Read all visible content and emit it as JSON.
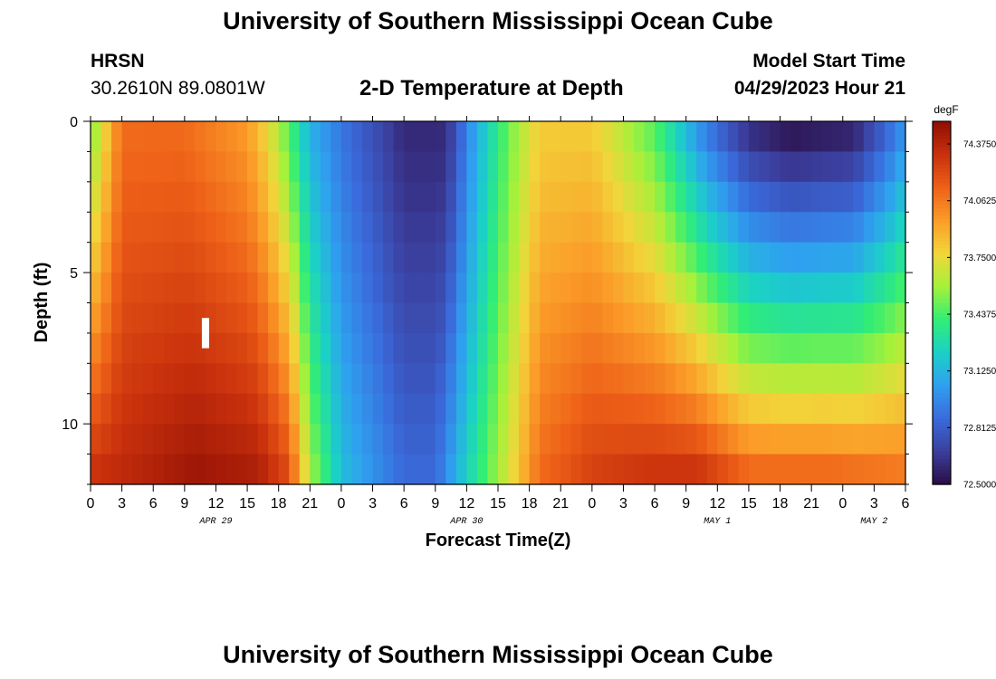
{
  "header": {
    "title": "University of Southern Mississippi Ocean Cube",
    "station": "HRSN",
    "coordinates": "30.2610N  89.0801W",
    "plot_title": "2-D Temperature at Depth",
    "run_label": "Model Start Time",
    "run_time": "04/29/2023 Hour 21"
  },
  "footer": {
    "title": "University of Southern Mississippi Ocean Cube"
  },
  "colors": {
    "palette": [
      "#2b0d45",
      "#3b3f9e",
      "#3a6bdc",
      "#2fa0f0",
      "#1bd1c6",
      "#32ee74",
      "#a6f13a",
      "#f2d53a",
      "#fb9c28",
      "#ee6018",
      "#c8300c",
      "#8e0e05"
    ]
  },
  "chart_data": {
    "type": "heatmap",
    "title": "2-D Temperature at Depth",
    "xlabel": "Forecast Time(Z)",
    "ylabel": "Depth (ft)",
    "x_tick_labels": [
      "0",
      "3",
      "6",
      "9",
      "12",
      "15",
      "18",
      "21",
      "0",
      "3",
      "6",
      "9",
      "12",
      "15",
      "18",
      "21",
      "0",
      "3",
      "6",
      "9",
      "12",
      "15",
      "18",
      "21",
      "0",
      "3",
      "6"
    ],
    "x_hours_since_apr29_00z": [
      0,
      3,
      6,
      9,
      12,
      15,
      18,
      21,
      24,
      27,
      30,
      33,
      36,
      39,
      42,
      45,
      48,
      51,
      54,
      57,
      60,
      63,
      66,
      69,
      72,
      75,
      78
    ],
    "date_labels": [
      {
        "text": "APR 29",
        "hour": 12
      },
      {
        "text": "APR 30",
        "hour": 36
      },
      {
        "text": "MAY 1",
        "hour": 60
      },
      {
        "text": "MAY 2",
        "hour": 75
      }
    ],
    "xlim": [
      0,
      78
    ],
    "ylim": [
      0,
      12
    ],
    "y_axis_inverted": true,
    "y_ticks": [
      0,
      5,
      10
    ],
    "colorbar": {
      "units": "degF",
      "range": [
        72.5,
        74.5
      ],
      "labels": [
        "74.3750",
        "74.0625",
        "73.7500",
        "73.4375",
        "73.1250",
        "72.8125",
        "72.5000"
      ],
      "values": [
        74.375,
        74.0625,
        73.75,
        73.4375,
        73.125,
        72.8125,
        72.5
      ]
    },
    "time_step_hours": 1,
    "depth_levels_ft": [
      0.5,
      1.5,
      2.5,
      3.5,
      4.5,
      5.5,
      6.5,
      7.5,
      8.5,
      9.5,
      10.5,
      11.5
    ],
    "surface_temperature_degF": [
      {
        "hour": 0,
        "value": 73.5
      },
      {
        "hour": 3,
        "value": 74.1
      },
      {
        "hour": 9,
        "value": 74.1
      },
      {
        "hour": 15,
        "value": 73.95
      },
      {
        "hour": 17,
        "value": 73.75
      },
      {
        "hour": 19,
        "value": 73.45
      },
      {
        "hour": 21,
        "value": 73.1
      },
      {
        "hour": 24,
        "value": 72.9
      },
      {
        "hour": 30,
        "value": 72.6
      },
      {
        "hour": 34,
        "value": 72.6
      },
      {
        "hour": 37,
        "value": 73.1
      },
      {
        "hour": 40,
        "value": 73.5
      },
      {
        "hour": 43,
        "value": 73.8
      },
      {
        "hour": 48,
        "value": 73.8
      },
      {
        "hour": 54,
        "value": 73.45
      },
      {
        "hour": 59,
        "value": 72.9
      },
      {
        "hour": 63,
        "value": 72.6
      },
      {
        "hour": 67,
        "value": 72.5
      },
      {
        "hour": 73,
        "value": 72.55
      },
      {
        "hour": 76,
        "value": 72.8
      },
      {
        "hour": 78,
        "value": 73.0
      }
    ],
    "bottom_temperature_degF": [
      {
        "hour": 0,
        "value": 74.3
      },
      {
        "hour": 10,
        "value": 74.45
      },
      {
        "hour": 16,
        "value": 74.4
      },
      {
        "hour": 19,
        "value": 74.2
      },
      {
        "hour": 21,
        "value": 73.6
      },
      {
        "hour": 24,
        "value": 73.15
      },
      {
        "hour": 30,
        "value": 72.85
      },
      {
        "hour": 33,
        "value": 72.85
      },
      {
        "hour": 37,
        "value": 73.35
      },
      {
        "hour": 40,
        "value": 73.7
      },
      {
        "hour": 43,
        "value": 74.1
      },
      {
        "hour": 48,
        "value": 74.25
      },
      {
        "hour": 54,
        "value": 74.3
      },
      {
        "hour": 58,
        "value": 74.3
      },
      {
        "hour": 63,
        "value": 74.1
      },
      {
        "hour": 70,
        "value": 74.1
      },
      {
        "hour": 78,
        "value": 74.05
      }
    ],
    "marker": {
      "hour": 11,
      "depth_ft": 7
    }
  }
}
